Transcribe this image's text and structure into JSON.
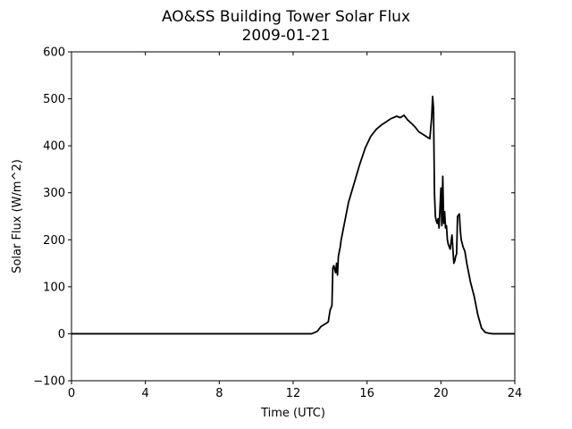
{
  "chart_data": {
    "type": "line",
    "title": "AO&SS Building Tower Solar Flux",
    "subtitle": "2009-01-21",
    "xlabel": "Time (UTC)",
    "ylabel": "Solar Flux (W/m^2)",
    "xlim": [
      0,
      24
    ],
    "ylim": [
      -100,
      600
    ],
    "x_ticks": [
      0,
      4,
      8,
      12,
      16,
      20,
      24
    ],
    "y_ticks": [
      -100,
      0,
      100,
      200,
      300,
      400,
      500,
      600
    ],
    "x_tick_labels": [
      "0",
      "4",
      "8",
      "12",
      "16",
      "20",
      "24"
    ],
    "y_tick_labels": [
      "−100",
      "0",
      "100",
      "200",
      "300",
      "400",
      "500",
      "600"
    ],
    "grid": false,
    "line_color": "#000000",
    "series": [
      {
        "x": [
          0,
          6,
          12,
          13.0,
          13.3,
          13.5,
          13.7,
          13.9,
          14.0,
          14.1,
          14.15,
          14.2,
          14.3,
          14.35,
          14.4,
          14.45,
          14.5,
          14.55,
          14.6,
          14.8,
          15.0,
          15.3,
          15.6,
          15.9,
          16.2,
          16.5,
          16.8,
          17.0,
          17.3,
          17.6,
          17.8,
          18.0,
          18.2,
          18.4,
          18.6,
          18.8,
          19.0,
          19.2,
          19.4,
          19.5,
          19.55,
          19.6,
          19.65,
          19.7,
          19.75,
          19.8,
          19.85,
          19.9,
          20.0,
          20.05,
          20.1,
          20.15,
          20.2,
          20.25,
          20.3,
          20.35,
          20.4,
          20.5,
          20.6,
          20.7,
          20.75,
          20.8,
          20.85,
          20.9,
          21.0,
          21.05,
          21.1,
          21.2,
          21.3,
          21.4,
          21.5,
          21.6,
          21.8,
          22.0,
          22.2,
          22.4,
          22.6,
          22.8,
          23.0,
          23.3,
          23.6,
          24
        ],
        "y": [
          0,
          0,
          0,
          0,
          5,
          15,
          20,
          25,
          50,
          60,
          140,
          145,
          130,
          150,
          125,
          165,
          175,
          185,
          200,
          240,
          280,
          320,
          360,
          395,
          420,
          435,
          445,
          450,
          458,
          463,
          460,
          465,
          455,
          448,
          440,
          430,
          425,
          420,
          415,
          460,
          505,
          480,
          300,
          250,
          240,
          235,
          245,
          225,
          310,
          230,
          335,
          235,
          260,
          225,
          230,
          200,
          190,
          180,
          210,
          150,
          155,
          165,
          170,
          250,
          255,
          220,
          200,
          185,
          175,
          150,
          130,
          110,
          80,
          40,
          12,
          3,
          1,
          0,
          0,
          0,
          0,
          0
        ]
      }
    ]
  }
}
